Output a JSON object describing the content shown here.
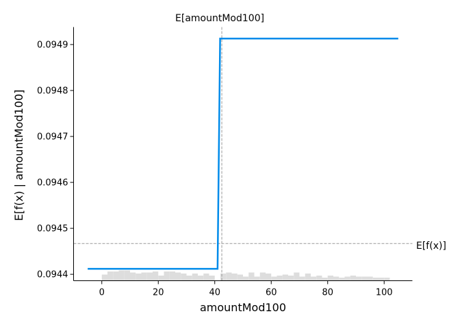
{
  "chart_data": {
    "type": "line",
    "xlabel": "amountMod100",
    "ylabel": "E[f(x) | amountMod100]",
    "xlim": [
      -10,
      110
    ],
    "ylim": [
      0.094386,
      0.094938
    ],
    "xticks": [
      0,
      20,
      40,
      60,
      80,
      100
    ],
    "yticks": [
      0.0944,
      0.0945,
      0.0946,
      0.0947,
      0.0948,
      0.0949
    ],
    "ytick_labels": [
      "0.0944",
      "0.0945",
      "0.0946",
      "0.0947",
      "0.0948",
      "0.0949"
    ],
    "line_color": "#008bea",
    "series": [
      {
        "x": [
          -5,
          41,
          41.9,
          105
        ],
        "y": [
          0.094412,
          0.094412,
          0.094913,
          0.094913
        ]
      }
    ],
    "annotations": {
      "expected_feature": {
        "label": "E[amountMod100]",
        "x": 42.5
      },
      "expected_output": {
        "label": "E[f(x)]",
        "y": 0.094467
      }
    },
    "histogram": {
      "color": "#dddddd",
      "bin_start": 0,
      "bin_width": 2,
      "counts": [
        6,
        9,
        9,
        10,
        10,
        8,
        7,
        8,
        8,
        9,
        5,
        9,
        9,
        8,
        7,
        5,
        7,
        5,
        7,
        5,
        0,
        7,
        8,
        7,
        6,
        4,
        8,
        4,
        8,
        7,
        4,
        5,
        6,
        5,
        8,
        4,
        7,
        4,
        5,
        3,
        5,
        4,
        3,
        4,
        5,
        4,
        4,
        4,
        3,
        3,
        3
      ]
    },
    "grid": false,
    "legend": "none"
  }
}
